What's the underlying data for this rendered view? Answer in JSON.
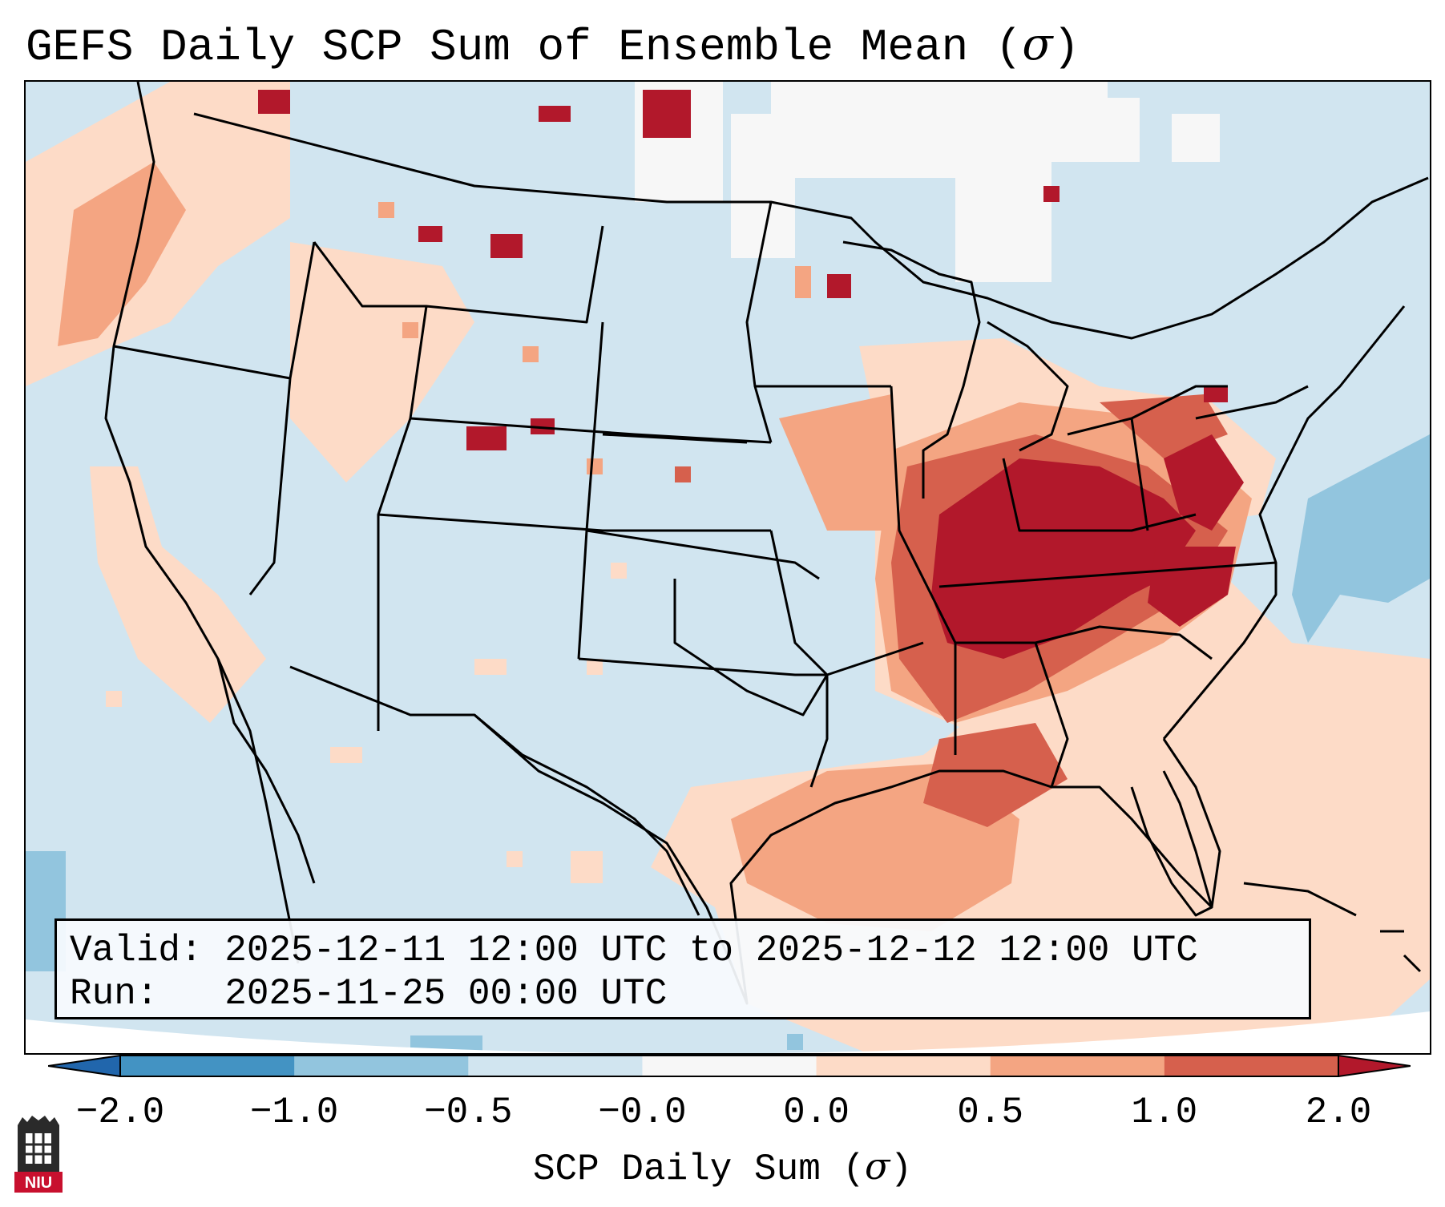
{
  "title": {
    "main": "GEFS Daily SCP Sum of Ensemble Mean (",
    "symbol": "σ",
    "close": ")"
  },
  "info_box": {
    "valid": "Valid: 2025-12-11 12:00 UTC to 2025-12-12 12:00 UTC",
    "run": "Run:   2025-11-25 00:00 UTC"
  },
  "colorbar": {
    "ticks": [
      "−2.0",
      "−1.0",
      "−0.5",
      "−0.0",
      "0.0",
      "0.5",
      "1.0",
      "2.0"
    ],
    "bins": [
      {
        "range": "-2.0 to -1.0",
        "color": "#4393c3"
      },
      {
        "range": "-1.0 to -0.5",
        "color": "#92c5de"
      },
      {
        "range": "-0.5 to -0.0",
        "color": "#d1e5f0"
      },
      {
        "range": "-0.0 to 0.0",
        "color": "#f7f7f7"
      },
      {
        "range": "0.0 to 0.5",
        "color": "#fddbc7"
      },
      {
        "range": "0.5 to 1.0",
        "color": "#f4a582"
      },
      {
        "range": "1.0 to 2.0",
        "color": "#d6604d"
      }
    ],
    "extend_low_color": "#2166ac",
    "extend_high_color": "#b2182b",
    "label": "SCP Daily Sum (",
    "label_symbol": "σ",
    "label_close": ")"
  },
  "map": {
    "region": "Contiguous United States",
    "background_color": "#d1e5f0",
    "max_color": "#b2182b"
  },
  "logo": {
    "text": "NIU",
    "icon": "niu-logo-icon"
  }
}
